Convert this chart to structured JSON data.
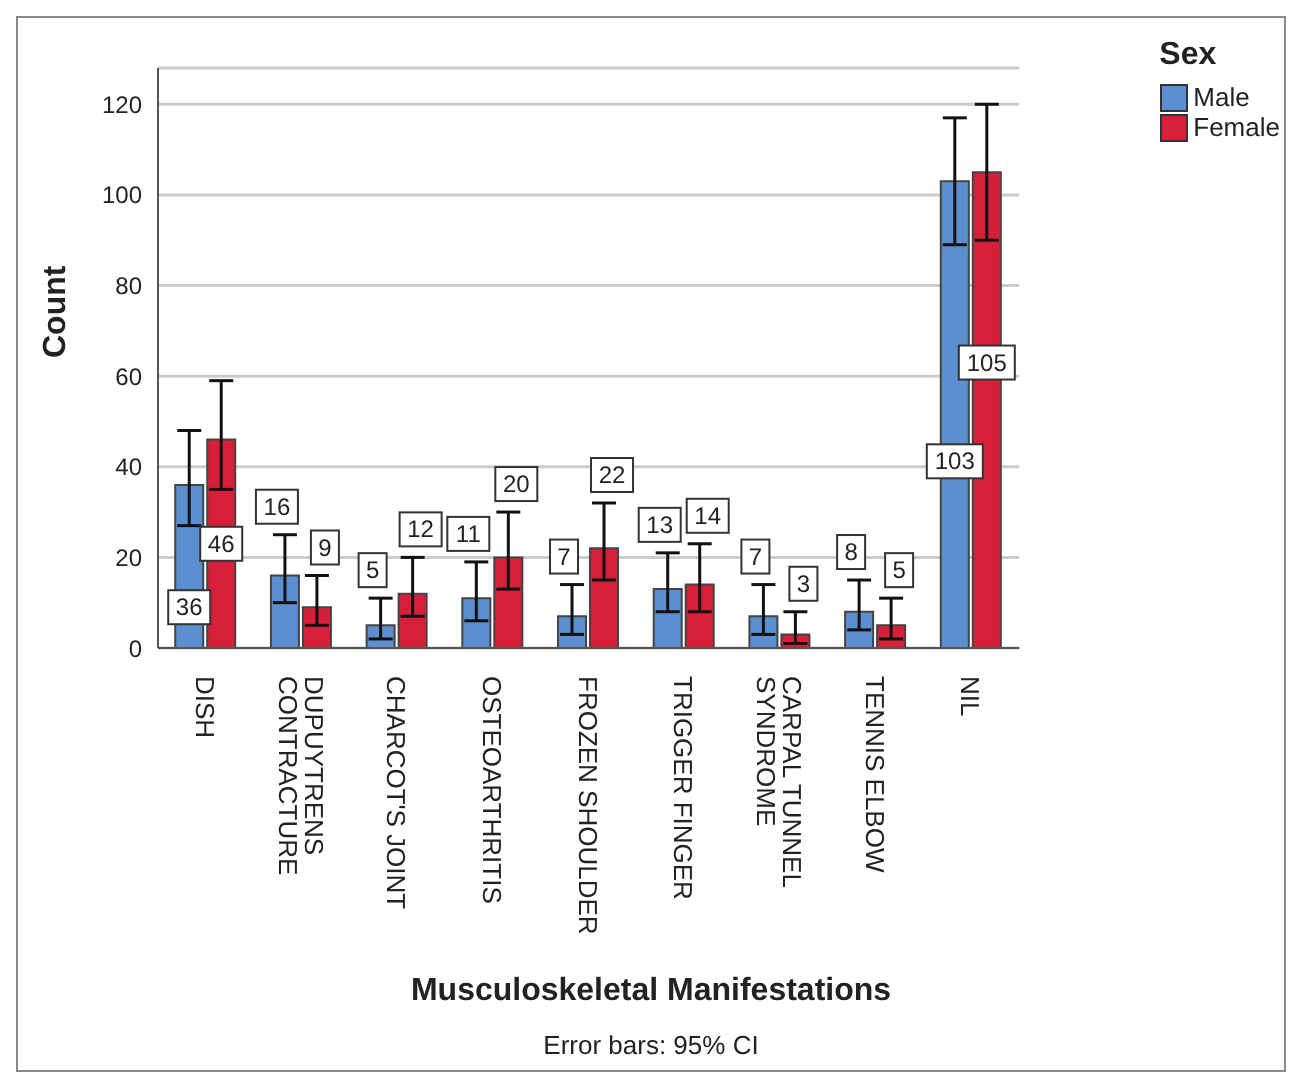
{
  "chart_data": {
    "type": "bar",
    "xlabel": "Musculoskeletal Manifestations",
    "ylabel": "Count",
    "legend_title": "Sex",
    "annotations": [
      "Error bars: 95% CI"
    ],
    "categories": [
      "DISH",
      "DUPUYTRENS CONTRACTURE",
      "CHARCOT'S JOINT",
      "OSTEOARTHRITIS",
      "FROZEN SHOULDER",
      "TRIGGER FINGER",
      "CARPAL TUNNEL SYNDROME",
      "TENNIS ELBOW",
      "NIL"
    ],
    "series": [
      {
        "name": "Male",
        "color": "#5b8fd0",
        "values": [
          36,
          16,
          5,
          11,
          7,
          13,
          7,
          8,
          103
        ],
        "errors": [
          [
            27,
            48
          ],
          [
            10,
            25
          ],
          [
            2,
            11
          ],
          [
            6,
            19
          ],
          [
            3,
            14
          ],
          [
            8,
            21
          ],
          [
            3,
            14
          ],
          [
            4,
            15
          ],
          [
            89,
            117
          ]
        ]
      },
      {
        "name": "Female",
        "color": "#d81f3a",
        "values": [
          46,
          9,
          12,
          20,
          22,
          14,
          3,
          5,
          105
        ],
        "errors": [
          [
            35,
            59
          ],
          [
            5,
            16
          ],
          [
            7,
            20
          ],
          [
            13,
            30
          ],
          [
            15,
            32
          ],
          [
            8,
            23
          ],
          [
            1,
            8
          ],
          [
            2,
            11
          ],
          [
            90,
            120
          ]
        ]
      }
    ],
    "ylim": [
      0,
      128
    ],
    "yticks": [
      0,
      20,
      40,
      60,
      80,
      100,
      120
    ],
    "grid": "y",
    "legend": "top right",
    "data_labels": true
  }
}
